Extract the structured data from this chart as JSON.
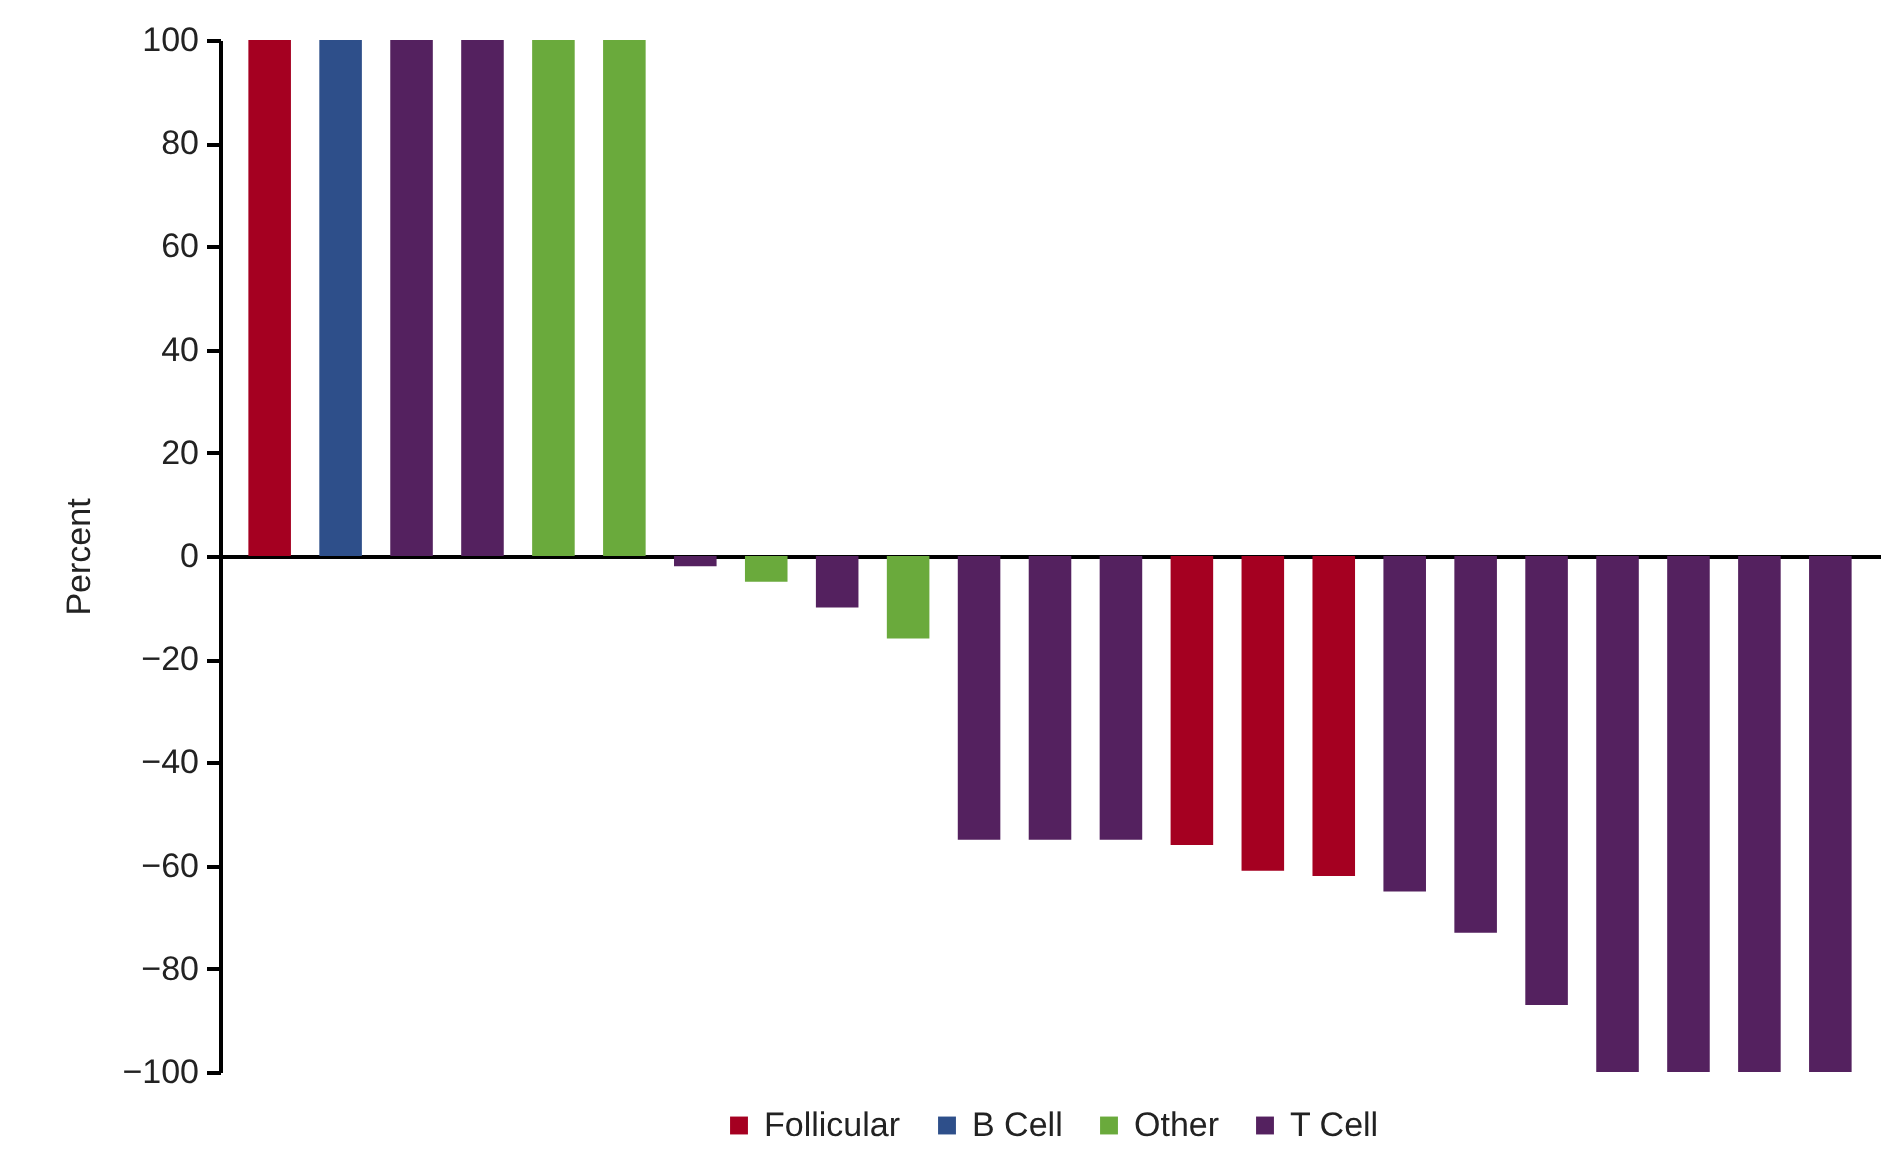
{
  "chart_data": {
    "type": "bar",
    "ylabel": "Percent",
    "stacked": true,
    "legend": "bottom",
    "tick_labels": "y",
    "categories": [
      null,
      null,
      null,
      null,
      null,
      null,
      null,
      null,
      null,
      null,
      null,
      null,
      null,
      null,
      null,
      null,
      null,
      null,
      null,
      null,
      null,
      null,
      null
    ],
    "ylim": [
      -100,
      100
    ],
    "yticks": [
      -100,
      -80,
      -60,
      -40,
      -20,
      0,
      20,
      40,
      60,
      80,
      100
    ],
    "series": [
      {
        "name": "Follicular",
        "color": "#a50021",
        "values": [
          100,
          null,
          null,
          null,
          null,
          null,
          null,
          null,
          null,
          null,
          null,
          null,
          null,
          -56,
          -61,
          -62,
          null,
          null,
          null,
          null,
          null,
          null,
          null
        ]
      },
      {
        "name": "B Cell",
        "color": "#2e4f8a",
        "values": [
          null,
          100,
          null,
          null,
          null,
          null,
          null,
          null,
          null,
          null,
          null,
          null,
          null,
          null,
          null,
          null,
          null,
          null,
          null,
          null,
          null,
          null,
          null
        ]
      },
      {
        "name": "Other",
        "color": "#6aaa3c",
        "values": [
          null,
          null,
          null,
          null,
          100,
          100,
          null,
          -5,
          null,
          -16,
          null,
          null,
          null,
          null,
          null,
          null,
          null,
          null,
          null,
          null,
          null,
          null,
          null
        ]
      },
      {
        "name": "T Cell",
        "color": "#54215f",
        "values": [
          null,
          null,
          100,
          100,
          null,
          null,
          -2,
          null,
          -10,
          null,
          -55,
          -55,
          -55,
          null,
          null,
          null,
          -65,
          -73,
          -87,
          -100,
          -100,
          -100,
          -100
        ]
      }
    ]
  }
}
